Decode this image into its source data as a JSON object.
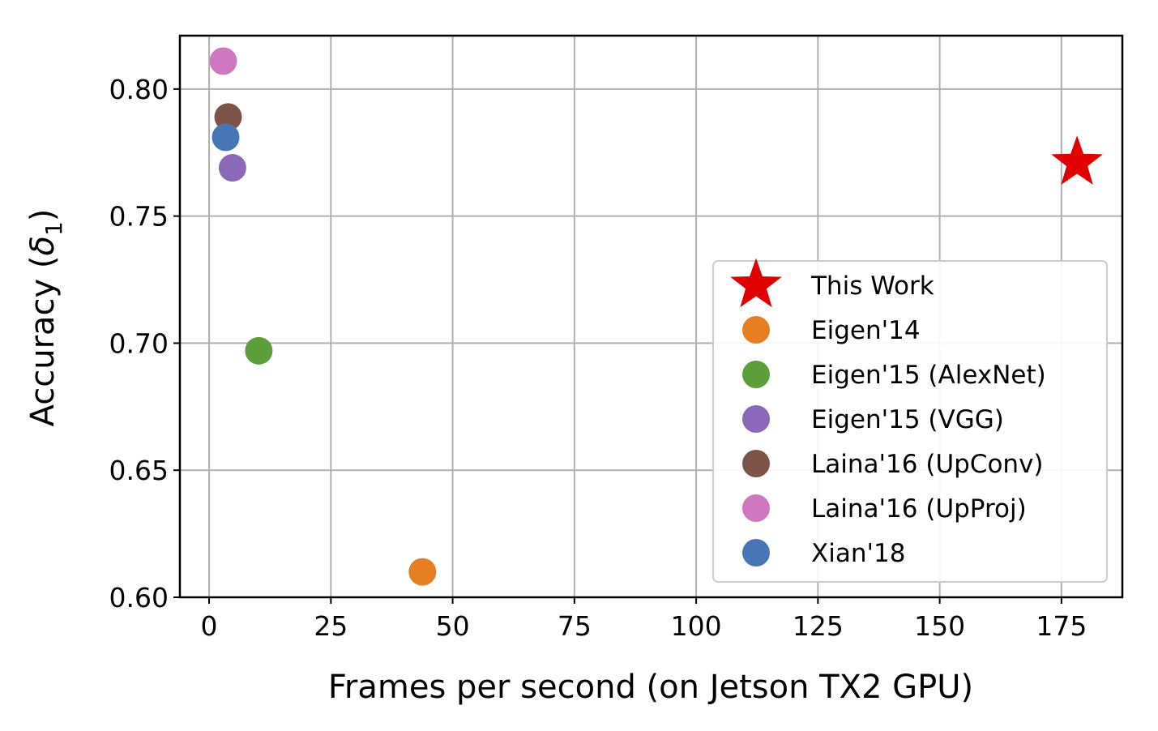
{
  "chart_data": {
    "type": "scatter",
    "title": "",
    "xlabel": "Frames per second (on Jetson TX2 GPU)",
    "ylabel_text": "Accuracy (",
    "ylabel_symbol": "δ",
    "ylabel_subscript": "1",
    "ylabel_close": ")",
    "xlim": [
      -6,
      187.5
    ],
    "ylim": [
      0.6,
      0.821
    ],
    "xticks": [
      0,
      25,
      50,
      75,
      100,
      125,
      150,
      175
    ],
    "xtick_labels": [
      "0",
      "25",
      "50",
      "75",
      "100",
      "125",
      "150",
      "175"
    ],
    "yticks": [
      0.6,
      0.65,
      0.7,
      0.75,
      0.8
    ],
    "ytick_labels": [
      "0.60",
      "0.65",
      "0.70",
      "0.75",
      "0.80"
    ],
    "grid": true,
    "legend_position": "lower-right",
    "series": [
      {
        "name": "This Work",
        "marker": "star",
        "color": "#e00000",
        "x": 178.2,
        "y": 0.771
      },
      {
        "name": "Eigen'14",
        "marker": "circle",
        "color": "#e67e22",
        "x": 43.8,
        "y": 0.61
      },
      {
        "name": "Eigen'15 (AlexNet)",
        "marker": "circle",
        "color": "#5c9e3a",
        "x": 10.2,
        "y": 0.697
      },
      {
        "name": "Eigen'15 (VGG)",
        "marker": "circle",
        "color": "#8b68ba",
        "x": 4.8,
        "y": 0.769
      },
      {
        "name": "Laina'16 (UpConv)",
        "marker": "circle",
        "color": "#7d5348",
        "x": 3.9,
        "y": 0.789
      },
      {
        "name": "Laina'16 (UpProj)",
        "marker": "circle",
        "color": "#cf78c1",
        "x": 2.9,
        "y": 0.811
      },
      {
        "name": "Xian'18",
        "marker": "circle",
        "color": "#4676b5",
        "x": 3.4,
        "y": 0.781
      }
    ]
  }
}
